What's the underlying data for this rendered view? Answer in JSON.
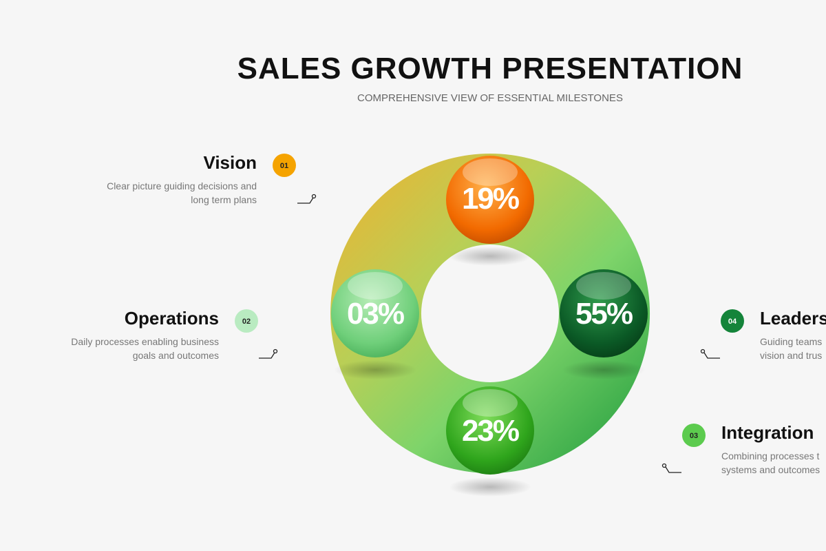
{
  "header": {
    "title": "SALES GROWTH PRESENTATION",
    "subtitle": "COMPREHENSIVE VIEW OF ESSENTIAL MILESTONES"
  },
  "items": [
    {
      "title": "Vision",
      "badge": "01",
      "description": [
        "Clear picture guiding decisions and",
        "long term plans"
      ]
    },
    {
      "title": "Operations",
      "badge": "02",
      "description": [
        "Daily processes enabling business",
        "goals and outcomes"
      ]
    },
    {
      "title": "Leaders",
      "badge": "04",
      "description": [
        "Guiding teams",
        "vision and trus"
      ]
    },
    {
      "title": "Integration",
      "badge": "03",
      "description": [
        "Combining processes t",
        "systems and outcomes"
      ]
    }
  ],
  "spheres": [
    {
      "label": "19%"
    },
    {
      "label": "03%"
    },
    {
      "label": "55%"
    },
    {
      "label": "23%"
    }
  ]
}
